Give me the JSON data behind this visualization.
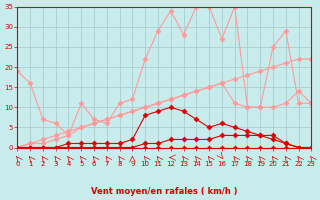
{
  "background_color": "#c8ecec",
  "grid_color": "#b0d0d0",
  "line_color_dark": "#dd0000",
  "line_color_light": "#ff9999",
  "xlabel": "Vent moyen/en rafales ( km/h )",
  "xlim": [
    0,
    23
  ],
  "ylim": [
    0,
    35
  ],
  "xticks": [
    0,
    1,
    2,
    3,
    4,
    5,
    6,
    7,
    8,
    9,
    10,
    11,
    12,
    13,
    14,
    15,
    16,
    17,
    18,
    19,
    20,
    21,
    22,
    23
  ],
  "yticks": [
    0,
    5,
    10,
    15,
    20,
    25,
    30,
    35
  ],
  "series_light_1": [
    19,
    16,
    7,
    6,
    3,
    11,
    7,
    6,
    11,
    12,
    22,
    29,
    34,
    28,
    35,
    35,
    27,
    35,
    10,
    10,
    25,
    29,
    11,
    11
  ],
  "series_light_2": [
    0,
    1,
    2,
    3,
    4,
    5,
    6,
    7,
    8,
    9,
    10,
    11,
    12,
    13,
    14,
    15,
    16,
    17,
    18,
    19,
    20,
    21,
    22,
    22
  ],
  "series_light_3": [
    0,
    1,
    1,
    2,
    3,
    5,
    6,
    7,
    8,
    9,
    10,
    11,
    12,
    13,
    14,
    15,
    16,
    11,
    10,
    10,
    10,
    11,
    14,
    11
  ],
  "series_dark_1": [
    0,
    0,
    0,
    0,
    1,
    1,
    1,
    1,
    1,
    2,
    8,
    9,
    10,
    9,
    7,
    5,
    6,
    5,
    4,
    3,
    2,
    1,
    0,
    0
  ],
  "series_dark_2": [
    0,
    0,
    0,
    0,
    0,
    0,
    0,
    0,
    0,
    0,
    1,
    1,
    2,
    2,
    2,
    2,
    3,
    3,
    3,
    3,
    3,
    1,
    0,
    0
  ],
  "series_dark_3": [
    0,
    0,
    0,
    0,
    0,
    0,
    0,
    0,
    0,
    0,
    0,
    0,
    0,
    0,
    0,
    0,
    0,
    0,
    0,
    0,
    0,
    0,
    0,
    0
  ],
  "wind_dirs": [
    225,
    225,
    225,
    225,
    225,
    225,
    225,
    225,
    225,
    180,
    225,
    225,
    270,
    225,
    225,
    225,
    45,
    225,
    225,
    225,
    225,
    225,
    225,
    225
  ]
}
